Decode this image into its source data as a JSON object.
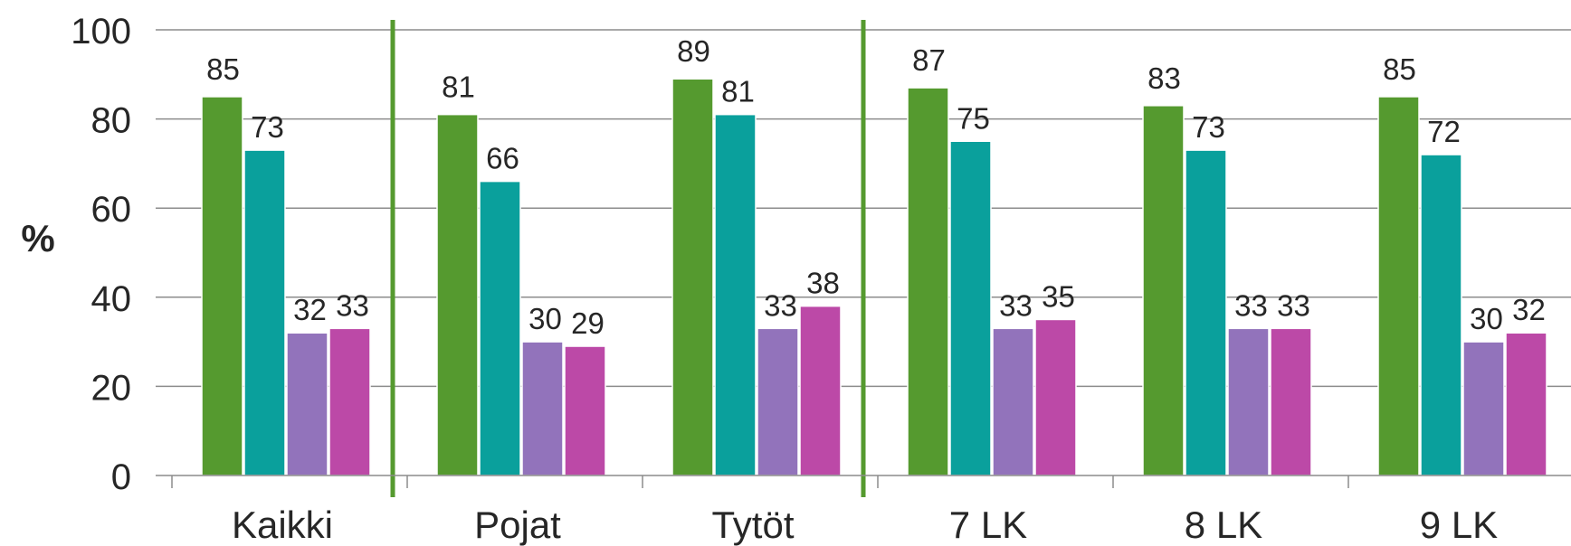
{
  "chart_data": {
    "type": "bar",
    "categories": [
      "Kaikki",
      "Pojat",
      "Tytöt",
      "7 LK",
      "8 LK",
      "9 LK"
    ],
    "series": [
      {
        "values": [
          85,
          81,
          89,
          87,
          83,
          85
        ],
        "color": "#559a2f"
      },
      {
        "values": [
          73,
          66,
          81,
          75,
          73,
          72
        ],
        "color": "#0aa09c"
      },
      {
        "values": [
          32,
          30,
          33,
          33,
          33,
          30
        ],
        "color": "#9273bb"
      },
      {
        "values": [
          33,
          29,
          38,
          35,
          33,
          32
        ],
        "color": "#bc49a7"
      }
    ],
    "ylabel": "%",
    "ylim": [
      0,
      100
    ],
    "yticks": [
      0,
      20,
      40,
      60,
      80,
      100
    ],
    "grid": true,
    "separator_color": "#559a2f",
    "gridline_color": "#8c8c8c"
  }
}
